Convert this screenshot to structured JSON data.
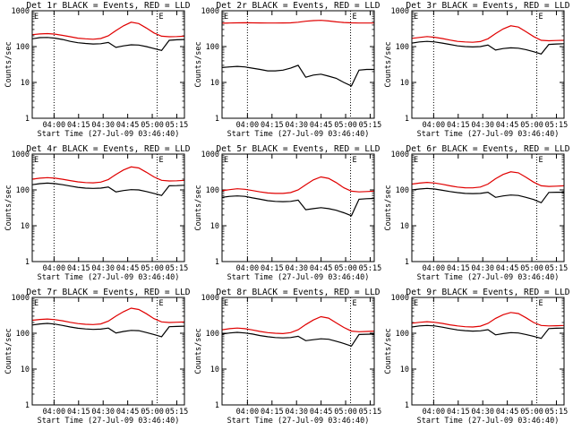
{
  "chart_data": [
    {
      "type": "line",
      "title": "Det 1r BLACK = Events, RED = LLD",
      "xlabel": "Start Time (27-Jul-09 03:46:40)",
      "ylabel": "Counts/sec",
      "yscale": "log",
      "ylim": [
        1,
        1000
      ],
      "ytick_labels": [
        "1",
        "10",
        "100",
        "1000"
      ],
      "xtick_labels": [
        "04:00",
        "04:15",
        "04:30",
        "04:45",
        "05:00",
        "05:15"
      ],
      "vlines": [
        "04:00",
        "05:03"
      ],
      "markers": [
        "E",
        "E"
      ],
      "series": [
        {
          "color": "#000000",
          "x": [
            0,
            5,
            10,
            15,
            20,
            25,
            30,
            35,
            40,
            45,
            50,
            55,
            60,
            65,
            70,
            75,
            80,
            85,
            90,
            95,
            100
          ],
          "y": [
            165,
            178,
            180,
            172,
            158,
            140,
            128,
            122,
            118,
            120,
            130,
            95,
            105,
            112,
            110,
            100,
            88,
            78,
            150,
            155,
            158
          ]
        },
        {
          "color": "#e00000",
          "x": [
            0,
            5,
            10,
            15,
            20,
            25,
            30,
            35,
            40,
            45,
            50,
            55,
            60,
            65,
            70,
            75,
            80,
            85,
            90,
            95,
            100
          ],
          "y": [
            215,
            225,
            230,
            222,
            205,
            188,
            172,
            165,
            160,
            168,
            200,
            280,
            380,
            480,
            440,
            330,
            240,
            195,
            188,
            190,
            195
          ]
        }
      ]
    },
    {
      "type": "line",
      "title": "Det 2r BLACK = Events, RED = LLD",
      "xlabel": "Start Time (27-Jul-09 03:46:40)",
      "ylabel": "Counts/sec",
      "yscale": "log",
      "ylim": [
        1,
        1000
      ],
      "ytick_labels": [
        "1",
        "10",
        "100",
        "1000"
      ],
      "xtick_labels": [
        "04:00",
        "04:15",
        "04:30",
        "04:45",
        "05:00",
        "05:15"
      ],
      "vlines": [
        "04:00",
        "05:03"
      ],
      "markers": [
        "E",
        "E"
      ],
      "series": [
        {
          "color": "#000000",
          "x": [
            0,
            5,
            10,
            15,
            20,
            25,
            30,
            35,
            40,
            45,
            50,
            55,
            60,
            65,
            70,
            75,
            80,
            85,
            90,
            95,
            100
          ],
          "y": [
            26,
            27,
            28,
            27,
            25,
            23,
            21,
            21,
            22,
            25,
            30,
            14,
            16,
            17,
            15,
            13,
            10,
            8,
            22,
            23,
            23
          ]
        },
        {
          "color": "#e00000",
          "x": [
            0,
            5,
            10,
            15,
            20,
            25,
            30,
            35,
            40,
            45,
            50,
            55,
            60,
            65,
            70,
            75,
            80,
            85,
            90,
            95,
            100
          ],
          "y": [
            450,
            455,
            460,
            462,
            460,
            458,
            455,
            455,
            458,
            460,
            480,
            510,
            530,
            540,
            520,
            490,
            470,
            460,
            455,
            455,
            455
          ]
        }
      ]
    },
    {
      "type": "line",
      "title": "Det 3r BLACK = Events, RED = LLD",
      "xlabel": "Start Time (27-Jul-09 03:46:40)",
      "ylabel": "Counts/sec",
      "yscale": "log",
      "ylim": [
        1,
        1000
      ],
      "ytick_labels": [
        "1",
        "10",
        "100",
        "1000"
      ],
      "xtick_labels": [
        "04:00",
        "04:15",
        "04:30",
        "04:45",
        "05:00",
        "05:15"
      ],
      "vlines": [
        "04:00",
        "05:03"
      ],
      "markers": [
        "E",
        "E"
      ],
      "series": [
        {
          "color": "#000000",
          "x": [
            0,
            5,
            10,
            15,
            20,
            25,
            30,
            35,
            40,
            45,
            50,
            55,
            60,
            65,
            70,
            75,
            80,
            85,
            90,
            95,
            100
          ],
          "y": [
            125,
            135,
            140,
            135,
            125,
            115,
            105,
            100,
            98,
            100,
            110,
            80,
            88,
            92,
            90,
            82,
            72,
            62,
            115,
            118,
            120
          ]
        },
        {
          "color": "#e00000",
          "x": [
            0,
            5,
            10,
            15,
            20,
            25,
            30,
            35,
            40,
            45,
            50,
            55,
            60,
            65,
            70,
            75,
            80,
            85,
            90,
            95,
            100
          ],
          "y": [
            170,
            180,
            190,
            182,
            168,
            152,
            140,
            135,
            132,
            138,
            165,
            230,
            310,
            380,
            350,
            260,
            190,
            150,
            145,
            148,
            150
          ]
        }
      ]
    },
    {
      "type": "line",
      "title": "Det 4r BLACK = Events, RED = LLD",
      "xlabel": "Start Time (27-Jul-09 03:46:40)",
      "ylabel": "Counts/sec",
      "yscale": "log",
      "ylim": [
        1,
        1000
      ],
      "ytick_labels": [
        "1",
        "10",
        "100",
        "1000"
      ],
      "xtick_labels": [
        "04:00",
        "04:15",
        "04:30",
        "04:45",
        "05:00",
        "05:15"
      ],
      "vlines": [
        "04:00",
        "05:03"
      ],
      "markers": [
        "E",
        "E"
      ],
      "series": [
        {
          "color": "#000000",
          "x": [
            0,
            5,
            10,
            15,
            20,
            25,
            30,
            35,
            40,
            45,
            50,
            55,
            60,
            65,
            70,
            75,
            80,
            85,
            90,
            95,
            100
          ],
          "y": [
            140,
            150,
            155,
            150,
            140,
            128,
            118,
            112,
            110,
            112,
            120,
            88,
            96,
            102,
            100,
            90,
            80,
            70,
            130,
            132,
            135
          ]
        },
        {
          "color": "#e00000",
          "x": [
            0,
            5,
            10,
            15,
            20,
            25,
            30,
            35,
            40,
            45,
            50,
            55,
            60,
            65,
            70,
            75,
            80,
            85,
            90,
            95,
            100
          ],
          "y": [
            200,
            212,
            220,
            212,
            198,
            182,
            168,
            160,
            158,
            165,
            195,
            270,
            360,
            440,
            410,
            310,
            230,
            185,
            178,
            180,
            185
          ]
        }
      ]
    },
    {
      "type": "line",
      "title": "Det 5r BLACK = Events, RED = LLD",
      "xlabel": "Start Time (27-Jul-09 03:46:40)",
      "ylabel": "Counts/sec",
      "yscale": "log",
      "ylim": [
        1,
        1000
      ],
      "ytick_labels": [
        "1",
        "10",
        "100",
        "1000"
      ],
      "xtick_labels": [
        "04:00",
        "04:15",
        "04:30",
        "04:45",
        "05:00",
        "05:15"
      ],
      "vlines": [
        "04:00",
        "05:03"
      ],
      "markers": [
        "E",
        "E"
      ],
      "series": [
        {
          "color": "#000000",
          "x": [
            0,
            5,
            10,
            15,
            20,
            25,
            30,
            35,
            40,
            45,
            50,
            55,
            60,
            65,
            70,
            75,
            80,
            85,
            90,
            95,
            100
          ],
          "y": [
            62,
            66,
            68,
            66,
            60,
            55,
            50,
            48,
            47,
            48,
            52,
            28,
            30,
            32,
            30,
            27,
            23,
            19,
            55,
            57,
            58
          ]
        },
        {
          "color": "#e00000",
          "x": [
            0,
            5,
            10,
            15,
            20,
            25,
            30,
            35,
            40,
            45,
            50,
            55,
            60,
            65,
            70,
            75,
            80,
            85,
            90,
            95,
            100
          ],
          "y": [
            95,
            102,
            108,
            104,
            96,
            88,
            82,
            80,
            80,
            84,
            100,
            140,
            190,
            230,
            210,
            160,
            115,
            92,
            88,
            90,
            92
          ]
        }
      ]
    },
    {
      "type": "line",
      "title": "Det 6r BLACK = Events, RED = LLD",
      "xlabel": "Start Time (27-Jul-09 03:46:40)",
      "ylabel": "Counts/sec",
      "yscale": "log",
      "ylim": [
        1,
        1000
      ],
      "ytick_labels": [
        "1",
        "10",
        "100",
        "1000"
      ],
      "xtick_labels": [
        "04:00",
        "04:15",
        "04:30",
        "04:45",
        "05:00",
        "05:15"
      ],
      "vlines": [
        "04:00",
        "05:03"
      ],
      "markers": [
        "E",
        "E"
      ],
      "series": [
        {
          "color": "#000000",
          "x": [
            0,
            5,
            10,
            15,
            20,
            25,
            30,
            35,
            40,
            45,
            50,
            55,
            60,
            65,
            70,
            75,
            80,
            85,
            90,
            95,
            100
          ],
          "y": [
            100,
            106,
            110,
            106,
            98,
            90,
            84,
            80,
            79,
            80,
            86,
            62,
            68,
            72,
            70,
            62,
            54,
            44,
            85,
            86,
            86
          ]
        },
        {
          "color": "#e00000",
          "x": [
            0,
            5,
            10,
            15,
            20,
            25,
            30,
            35,
            40,
            45,
            50,
            55,
            60,
            65,
            70,
            75,
            80,
            85,
            90,
            95,
            100
          ],
          "y": [
            145,
            155,
            162,
            156,
            144,
            130,
            120,
            115,
            114,
            120,
            145,
            205,
            270,
            320,
            300,
            225,
            165,
            130,
            125,
            127,
            130
          ]
        }
      ]
    },
    {
      "type": "line",
      "title": "Det 7r BLACK = Events, RED = LLD",
      "xlabel": "Start Time (27-Jul-09 03:46:40)",
      "ylabel": "Counts/sec",
      "yscale": "log",
      "ylim": [
        1,
        1000
      ],
      "ytick_labels": [
        "1",
        "10",
        "100",
        "1000"
      ],
      "xtick_labels": [
        "04:00",
        "04:15",
        "04:30",
        "04:45",
        "05:00",
        "05:15"
      ],
      "vlines": [
        "04:00",
        "05:03"
      ],
      "markers": [
        "E",
        "E"
      ],
      "series": [
        {
          "color": "#000000",
          "x": [
            0,
            5,
            10,
            15,
            20,
            25,
            30,
            35,
            40,
            45,
            50,
            55,
            60,
            65,
            70,
            75,
            80,
            85,
            90,
            95,
            100
          ],
          "y": [
            170,
            182,
            188,
            180,
            165,
            150,
            138,
            132,
            128,
            130,
            140,
            102,
            112,
            120,
            118,
            105,
            92,
            80,
            152,
            155,
            158
          ]
        },
        {
          "color": "#e00000",
          "x": [
            0,
            5,
            10,
            15,
            20,
            25,
            30,
            35,
            40,
            45,
            50,
            55,
            60,
            65,
            70,
            75,
            80,
            85,
            90,
            95,
            100
          ],
          "y": [
            230,
            242,
            250,
            240,
            222,
            202,
            186,
            178,
            175,
            182,
            218,
            300,
            400,
            500,
            460,
            350,
            255,
            208,
            200,
            203,
            206
          ]
        }
      ]
    },
    {
      "type": "line",
      "title": "Det 8r BLACK = Events, RED = LLD",
      "xlabel": "Start Time (27-Jul-09 03:46:40)",
      "ylabel": "Counts/sec",
      "yscale": "log",
      "ylim": [
        1,
        1000
      ],
      "ytick_labels": [
        "1",
        "10",
        "100",
        "1000"
      ],
      "xtick_labels": [
        "04:00",
        "04:15",
        "04:30",
        "04:45",
        "05:00",
        "05:15"
      ],
      "vlines": [
        "04:00",
        "05:03"
      ],
      "markers": [
        "E",
        "E"
      ],
      "series": [
        {
          "color": "#000000",
          "x": [
            0,
            5,
            10,
            15,
            20,
            25,
            30,
            35,
            40,
            45,
            50,
            55,
            60,
            65,
            70,
            75,
            80,
            85,
            90,
            95,
            100
          ],
          "y": [
            95,
            102,
            106,
            102,
            95,
            86,
            80,
            76,
            74,
            76,
            82,
            62,
            66,
            70,
            68,
            60,
            52,
            44,
            92,
            94,
            95
          ]
        },
        {
          "color": "#e00000",
          "x": [
            0,
            5,
            10,
            15,
            20,
            25,
            30,
            35,
            40,
            45,
            50,
            55,
            60,
            65,
            70,
            75,
            80,
            85,
            90,
            95,
            100
          ],
          "y": [
            125,
            134,
            140,
            134,
            124,
            112,
            104,
            100,
            98,
            104,
            125,
            175,
            235,
            290,
            265,
            195,
            145,
            115,
            110,
            112,
            115
          ]
        }
      ]
    },
    {
      "type": "line",
      "title": "Det 9r BLACK = Events, RED = LLD",
      "xlabel": "Start Time (27-Jul-09 03:46:40)",
      "ylabel": "Counts/sec",
      "yscale": "log",
      "ylim": [
        1,
        1000
      ],
      "ytick_labels": [
        "1",
        "10",
        "100",
        "1000"
      ],
      "xtick_labels": [
        "04:00",
        "04:15",
        "04:30",
        "04:45",
        "05:00",
        "05:15"
      ],
      "vlines": [
        "04:00",
        "05:03"
      ],
      "markers": [
        "E",
        "E"
      ],
      "series": [
        {
          "color": "#000000",
          "x": [
            0,
            5,
            10,
            15,
            20,
            25,
            30,
            35,
            40,
            45,
            50,
            55,
            60,
            65,
            70,
            75,
            80,
            85,
            90,
            95,
            100
          ],
          "y": [
            150,
            160,
            165,
            160,
            148,
            135,
            124,
            118,
            115,
            117,
            126,
            90,
            98,
            104,
            102,
            92,
            82,
            72,
            135,
            138,
            140
          ]
        },
        {
          "color": "#e00000",
          "x": [
            0,
            5,
            10,
            15,
            20,
            25,
            30,
            35,
            40,
            45,
            50,
            55,
            60,
            65,
            70,
            75,
            80,
            85,
            90,
            95,
            100
          ],
          "y": [
            190,
            202,
            210,
            202,
            188,
            172,
            160,
            152,
            150,
            158,
            188,
            260,
            330,
            380,
            355,
            270,
            200,
            165,
            160,
            162,
            165
          ]
        }
      ]
    }
  ]
}
